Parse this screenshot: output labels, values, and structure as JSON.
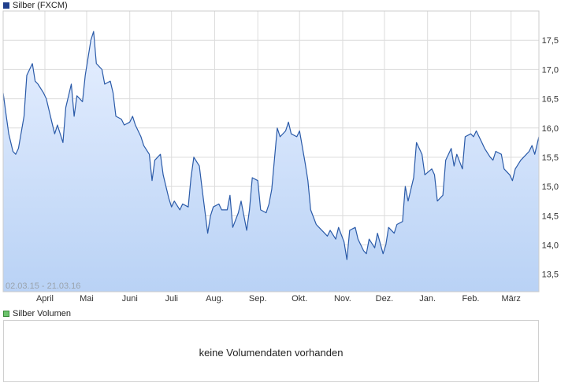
{
  "legend": {
    "price_label": "Silber (FXCM)",
    "volume_label": "Silber Volumen"
  },
  "colors": {
    "line": "#2a5aa8",
    "fill_top": "#e6efff",
    "fill_bottom": "#b9d2f5",
    "price_swatch": "#1f3f8c",
    "volume_swatch": "#6cc46c",
    "grid": "#dcdcdc"
  },
  "volume_panel": {
    "message": "keine Volumendaten vorhanden"
  },
  "chart_data": {
    "type": "area",
    "title": "Silber (FXCM)",
    "date_range_label": "02.03.15 - 21.03.16",
    "y_axis_side": "right",
    "ylim": [
      13.2,
      18.0
    ],
    "y_ticks": [
      13.5,
      14.0,
      14.5,
      15.0,
      15.5,
      16.0,
      16.5,
      17.0,
      17.5
    ],
    "y_tick_labels": [
      "13,5",
      "14,0",
      "14,5",
      "15,0",
      "15,5",
      "16,0",
      "16,5",
      "17,0",
      "17,5"
    ],
    "xlim": [
      "2015-03-02",
      "2016-03-21"
    ],
    "x_ticks": [
      "2015-04-01",
      "2015-05-01",
      "2015-06-01",
      "2015-07-01",
      "2015-08-01",
      "2015-09-01",
      "2015-10-01",
      "2015-11-01",
      "2015-12-01",
      "2016-01-01",
      "2016-02-01",
      "2016-03-01"
    ],
    "x_tick_labels": [
      "April",
      "Mai",
      "Juni",
      "Juli",
      "Aug.",
      "Sep.",
      "Okt.",
      "Nov.",
      "Dez.",
      "Jan.",
      "Feb.",
      "März"
    ],
    "grid": true,
    "series": [
      {
        "name": "Silber (FXCM)",
        "x": [
          "2015-03-02",
          "2015-03-04",
          "2015-03-06",
          "2015-03-09",
          "2015-03-11",
          "2015-03-13",
          "2015-03-17",
          "2015-03-19",
          "2015-03-23",
          "2015-03-25",
          "2015-03-27",
          "2015-03-31",
          "2015-04-02",
          "2015-04-06",
          "2015-04-08",
          "2015-04-10",
          "2015-04-14",
          "2015-04-16",
          "2015-04-20",
          "2015-04-22",
          "2015-04-24",
          "2015-04-28",
          "2015-04-30",
          "2015-05-04",
          "2015-05-06",
          "2015-05-08",
          "2015-05-12",
          "2015-05-14",
          "2015-05-18",
          "2015-05-20",
          "2015-05-22",
          "2015-05-26",
          "2015-05-28",
          "2015-06-01",
          "2015-06-03",
          "2015-06-05",
          "2015-06-09",
          "2015-06-11",
          "2015-06-15",
          "2015-06-17",
          "2015-06-19",
          "2015-06-23",
          "2015-06-25",
          "2015-06-29",
          "2015-07-01",
          "2015-07-03",
          "2015-07-07",
          "2015-07-09",
          "2015-07-13",
          "2015-07-15",
          "2015-07-17",
          "2015-07-21",
          "2015-07-23",
          "2015-07-27",
          "2015-07-29",
          "2015-07-31",
          "2015-08-04",
          "2015-08-06",
          "2015-08-10",
          "2015-08-12",
          "2015-08-14",
          "2015-08-18",
          "2015-08-20",
          "2015-08-24",
          "2015-08-26",
          "2015-08-28",
          "2015-09-01",
          "2015-09-03",
          "2015-09-07",
          "2015-09-09",
          "2015-09-11",
          "2015-09-15",
          "2015-09-17",
          "2015-09-21",
          "2015-09-23",
          "2015-09-25",
          "2015-09-29",
          "2015-10-01",
          "2015-10-05",
          "2015-10-07",
          "2015-10-09",
          "2015-10-13",
          "2015-10-15",
          "2015-10-19",
          "2015-10-21",
          "2015-10-23",
          "2015-10-27",
          "2015-10-29",
          "2015-11-02",
          "2015-11-04",
          "2015-11-06",
          "2015-11-10",
          "2015-11-12",
          "2015-11-16",
          "2015-11-18",
          "2015-11-20",
          "2015-11-24",
          "2015-11-26",
          "2015-11-30",
          "2015-12-02",
          "2015-12-04",
          "2015-12-08",
          "2015-12-10",
          "2015-12-14",
          "2015-12-16",
          "2015-12-18",
          "2015-12-22",
          "2015-12-24",
          "2015-12-28",
          "2015-12-30",
          "2016-01-04",
          "2016-01-06",
          "2016-01-08",
          "2016-01-12",
          "2016-01-14",
          "2016-01-18",
          "2016-01-20",
          "2016-01-22",
          "2016-01-26",
          "2016-01-28",
          "2016-02-01",
          "2016-02-03",
          "2016-02-05",
          "2016-02-09",
          "2016-02-11",
          "2016-02-15",
          "2016-02-17",
          "2016-02-19",
          "2016-02-23",
          "2016-02-25",
          "2016-02-29",
          "2016-03-02",
          "2016-03-04",
          "2016-03-08",
          "2016-03-10",
          "2016-03-14",
          "2016-03-16",
          "2016-03-18",
          "2016-03-21"
        ],
        "values": [
          16.6,
          16.25,
          15.9,
          15.6,
          15.55,
          15.65,
          16.2,
          16.9,
          17.1,
          16.8,
          16.75,
          16.6,
          16.5,
          16.1,
          15.9,
          16.05,
          15.75,
          16.35,
          16.75,
          16.2,
          16.55,
          16.45,
          16.9,
          17.5,
          17.65,
          17.1,
          17.0,
          16.75,
          16.8,
          16.6,
          16.2,
          16.15,
          16.05,
          16.1,
          16.2,
          16.05,
          15.85,
          15.7,
          15.55,
          15.1,
          15.45,
          15.55,
          15.2,
          14.8,
          14.65,
          14.75,
          14.6,
          14.7,
          14.65,
          15.15,
          15.5,
          15.35,
          14.95,
          14.2,
          14.5,
          14.65,
          14.7,
          14.6,
          14.6,
          14.85,
          14.3,
          14.55,
          14.75,
          14.25,
          14.6,
          15.15,
          15.1,
          14.6,
          14.55,
          14.7,
          14.95,
          16.0,
          15.85,
          15.95,
          16.1,
          15.9,
          15.85,
          15.95,
          15.4,
          15.1,
          14.6,
          14.35,
          14.3,
          14.2,
          14.15,
          14.25,
          14.1,
          14.3,
          14.05,
          13.75,
          14.25,
          14.3,
          14.1,
          13.9,
          13.85,
          14.1,
          13.95,
          14.2,
          13.85,
          14.0,
          14.3,
          14.2,
          14.35,
          14.4,
          15.0,
          14.75,
          15.15,
          15.75,
          15.55,
          15.2,
          15.3,
          15.2,
          14.75,
          14.85,
          15.45,
          15.65,
          15.35,
          15.55,
          15.3,
          15.85,
          15.9,
          15.85,
          15.95,
          15.75,
          15.65,
          15.5,
          15.45,
          15.6,
          15.55,
          15.3,
          15.2,
          15.1,
          15.3,
          15.45,
          15.5,
          15.6,
          15.7,
          15.55,
          15.85
        ]
      }
    ]
  }
}
